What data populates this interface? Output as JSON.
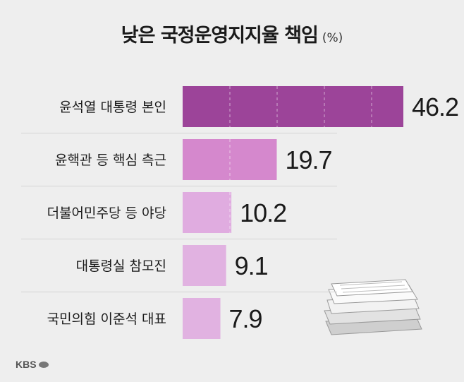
{
  "title": "낮은 국정운영지지율 책임",
  "unit": "(%)",
  "logo": "KBS",
  "colors": {
    "background": "#eeeeee",
    "bars": [
      "#9c4499",
      "#d588cd",
      "#e0ace0",
      "#e1b2e1",
      "#e1b2e1"
    ],
    "separator": "#d4d4d4",
    "label": "#1a1a1a"
  },
  "chart_data": {
    "type": "bar",
    "orientation": "horizontal",
    "title": "낮은 국정운영지지율 책임",
    "unit": "(%)",
    "categories": [
      "윤석열 대통령 본인",
      "윤핵관 등 핵심 측근",
      "더불어민주당 등 야당",
      "대통령실 참모진",
      "국민의힘 이준석 대표"
    ],
    "values": [
      46.2,
      19.7,
      10.2,
      9.1,
      7.9
    ],
    "value_labels": [
      "46.2",
      "19.7",
      "10.2",
      "9.1",
      "7.9"
    ],
    "xlim": [
      0,
      46.2
    ],
    "grid": false,
    "legend": "none"
  }
}
